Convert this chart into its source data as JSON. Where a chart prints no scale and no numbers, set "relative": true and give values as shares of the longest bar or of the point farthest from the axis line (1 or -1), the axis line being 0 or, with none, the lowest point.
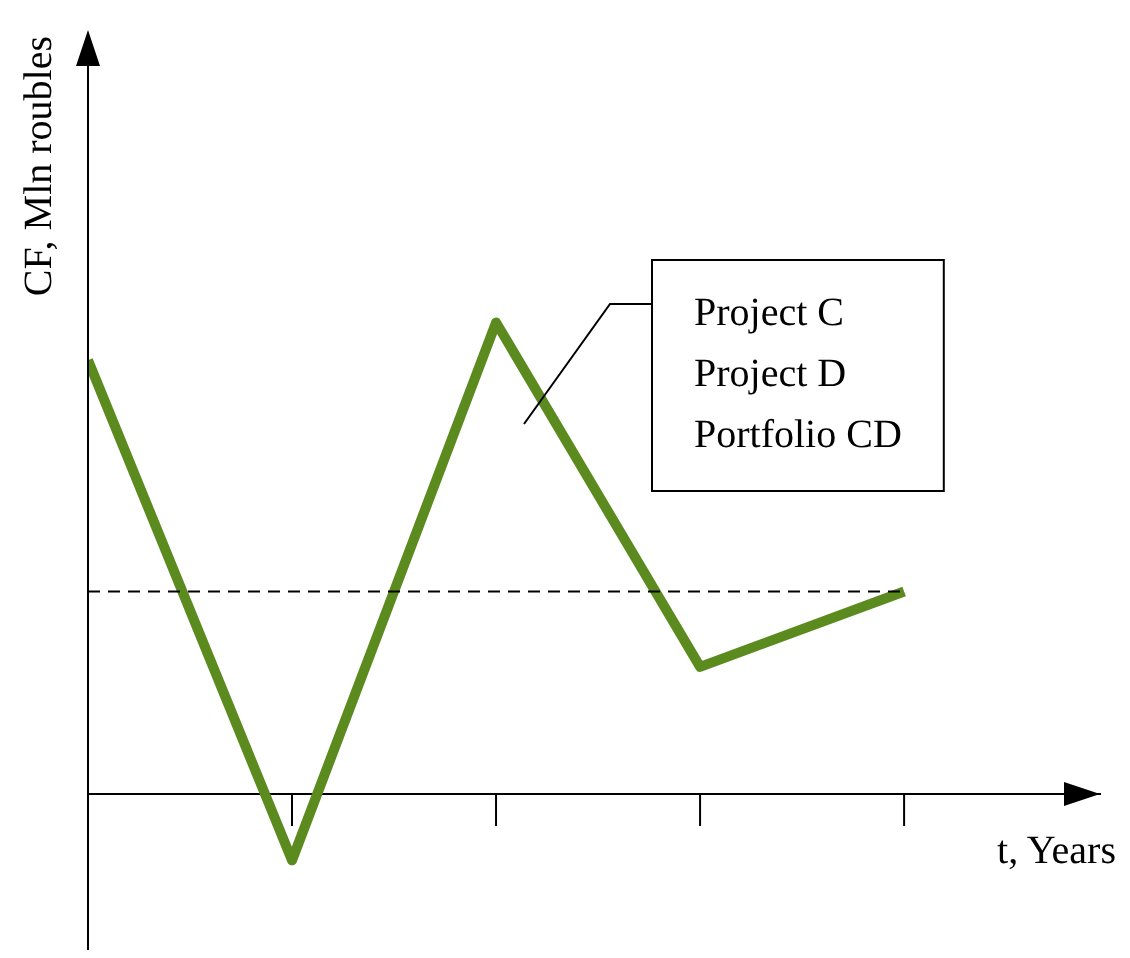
{
  "chart_data": {
    "type": "line",
    "relative": true,
    "xlabel": "t, Years",
    "ylabel": "CF, Mln roubles",
    "categories": [
      null,
      null,
      null,
      null,
      null
    ],
    "series": [
      {
        "color": "#5b8a1e",
        "values": [
          0.92,
          -0.14,
          1,
          0.27,
          0.43
        ]
      }
    ],
    "annotations": [
      "Project C",
      "Project D",
      "Portfolio CD"
    ],
    "ref_lines": [
      {
        "axis": "y",
        "value": 0.43,
        "color": "#000000",
        "line_style": "dashed"
      }
    ],
    "tick_labels": false,
    "grid": false,
    "legend": false,
    "marker": "none",
    "line_style": "solid"
  }
}
